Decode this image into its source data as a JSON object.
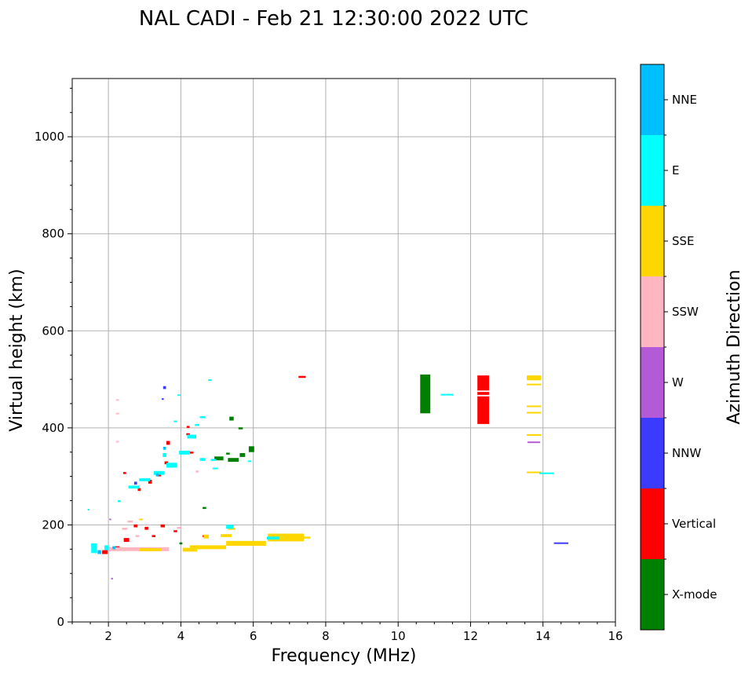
{
  "chart_data": {
    "type": "scatter",
    "title": "NAL CADI - Feb 21 12:30:00 2022 UTC",
    "xlabel": "Frequency (MHz)",
    "ylabel": "Virtual height (km)",
    "xlim": [
      1,
      16
    ],
    "ylim": [
      0,
      1120
    ],
    "xticks": [
      2,
      4,
      6,
      8,
      10,
      12,
      14,
      16
    ],
    "yticks": [
      0,
      200,
      400,
      600,
      800,
      1000
    ],
    "grid": true,
    "colorbar": {
      "label": "Azimuth Direction",
      "categories": [
        {
          "name": "X-mode",
          "color": "#008000"
        },
        {
          "name": "Vertical",
          "color": "#ff0000"
        },
        {
          "name": "NNW",
          "color": "#3b3bff"
        },
        {
          "name": "W",
          "color": "#b45ad6"
        },
        {
          "name": "SSW",
          "color": "#ffb6c1"
        },
        {
          "name": "SSE",
          "color": "#ffd700"
        },
        {
          "name": "E",
          "color": "#00ffff"
        },
        {
          "name": "NNE",
          "color": "#00bfff"
        }
      ]
    },
    "series": [
      {
        "name": "X-mode",
        "points": [
          [
            10.75,
            430,
            0.28,
            80
          ],
          [
            5.4,
            415,
            0.12,
            8
          ],
          [
            5.05,
            333,
            0.25,
            8
          ],
          [
            5.45,
            330,
            0.3,
            8
          ],
          [
            5.7,
            340,
            0.15,
            8
          ],
          [
            5.95,
            350,
            0.15,
            12
          ],
          [
            5.65,
            397,
            0.12,
            4
          ],
          [
            4.65,
            233,
            0.1,
            4
          ],
          [
            5.3,
            345,
            0.1,
            4
          ],
          [
            4.0,
            160,
            0.08,
            4
          ]
        ]
      },
      {
        "name": "Vertical",
        "points": [
          [
            12.35,
            408,
            0.32,
            100
          ],
          [
            7.35,
            503,
            0.2,
            4
          ],
          [
            2.5,
            165,
            0.15,
            8
          ],
          [
            2.75,
            195,
            0.1,
            6
          ],
          [
            3.05,
            190,
            0.1,
            6
          ],
          [
            3.15,
            285,
            0.1,
            8
          ],
          [
            3.4,
            300,
            0.1,
            6
          ],
          [
            3.6,
            325,
            0.1,
            6
          ],
          [
            3.65,
            365,
            0.1,
            8
          ],
          [
            4.2,
            385,
            0.1,
            4
          ],
          [
            4.2,
            400,
            0.08,
            4
          ],
          [
            2.45,
            305,
            0.08,
            4
          ],
          [
            1.9,
            140,
            0.15,
            8
          ],
          [
            3.5,
            195,
            0.12,
            6
          ],
          [
            4.3,
            347,
            0.1,
            4
          ],
          [
            2.25,
            150,
            0.12,
            6
          ],
          [
            3.25,
            175,
            0.1,
            4
          ],
          [
            3.85,
            185,
            0.1,
            4
          ],
          [
            4.65,
            175,
            0.1,
            4
          ],
          [
            2.85,
            270,
            0.08,
            6
          ]
        ]
      },
      {
        "name": "NNW",
        "points": [
          [
            14.5,
            162,
            0.4,
            2
          ],
          [
            3.55,
            480,
            0.08,
            6
          ],
          [
            3.5,
            458,
            0.06,
            3
          ],
          [
            2.75,
            283,
            0.08,
            6
          ]
        ]
      },
      {
        "name": "W",
        "points": [
          [
            13.75,
            369,
            0.35,
            3
          ],
          [
            2.1,
            88,
            0.05,
            3
          ],
          [
            2.05,
            210,
            0.05,
            3
          ]
        ]
      },
      {
        "name": "SSW",
        "points": [
          [
            2.6,
            146,
            1.25,
            8
          ],
          [
            3.25,
            146,
            0.85,
            8
          ],
          [
            2.45,
            190,
            0.15,
            4
          ],
          [
            2.8,
            175,
            0.1,
            4
          ],
          [
            2.25,
            456,
            0.08,
            3
          ],
          [
            2.25,
            428,
            0.08,
            3
          ],
          [
            2.25,
            370,
            0.08,
            3
          ],
          [
            3.95,
            192,
            0.12,
            4
          ],
          [
            4.45,
            308,
            0.08,
            4
          ],
          [
            2.6,
            205,
            0.15,
            4
          ]
        ]
      },
      {
        "name": "SSE",
        "points": [
          [
            4.75,
            150,
            1.0,
            8
          ],
          [
            5.8,
            157,
            1.1,
            10
          ],
          [
            6.9,
            166,
            1.0,
            16
          ],
          [
            13.75,
            498,
            0.4,
            10
          ],
          [
            13.75,
            488,
            0.4,
            3
          ],
          [
            13.75,
            443,
            0.4,
            3
          ],
          [
            13.75,
            430,
            0.4,
            3
          ],
          [
            13.75,
            384,
            0.4,
            3
          ],
          [
            13.75,
            308,
            0.4,
            2
          ],
          [
            4.4,
            150,
            0.2,
            8
          ],
          [
            5.25,
            175,
            0.3,
            6
          ],
          [
            3.15,
            146,
            0.6,
            6
          ],
          [
            4.25,
            145,
            0.4,
            8
          ],
          [
            4.7,
            172,
            0.15,
            8
          ],
          [
            2.9,
            210,
            0.1,
            3
          ],
          [
            5.4,
            190,
            0.2,
            4
          ],
          [
            7.45,
            172,
            0.25,
            4
          ]
        ]
      },
      {
        "name": "E",
        "points": [
          [
            11.35,
            467,
            0.35,
            3
          ],
          [
            14.1,
            305,
            0.4,
            3
          ],
          [
            2.7,
            275,
            0.3,
            6
          ],
          [
            3.0,
            290,
            0.3,
            6
          ],
          [
            3.4,
            303,
            0.3,
            8
          ],
          [
            3.75,
            318,
            0.3,
            10
          ],
          [
            4.1,
            345,
            0.3,
            8
          ],
          [
            4.3,
            378,
            0.25,
            8
          ],
          [
            4.6,
            332,
            0.15,
            6
          ],
          [
            4.9,
            332,
            0.15,
            4
          ],
          [
            5.35,
            192,
            0.2,
            8
          ],
          [
            6.55,
            170,
            0.35,
            6
          ],
          [
            1.6,
            142,
            0.15,
            20
          ],
          [
            1.95,
            148,
            0.12,
            10
          ],
          [
            2.3,
            247,
            0.08,
            4
          ],
          [
            4.6,
            420,
            0.15,
            4
          ],
          [
            4.8,
            497,
            0.1,
            3
          ],
          [
            3.85,
            412,
            0.1,
            3
          ],
          [
            3.95,
            466,
            0.08,
            3
          ],
          [
            4.45,
            404,
            0.12,
            4
          ],
          [
            4.95,
            315,
            0.15,
            3
          ],
          [
            5.9,
            330,
            0.1,
            3
          ],
          [
            1.45,
            230,
            0.05,
            3
          ],
          [
            3.55,
            340,
            0.1,
            8
          ]
        ]
      },
      {
        "name": "NNE",
        "points": [
          [
            1.75,
            140,
            0.1,
            8
          ],
          [
            2.15,
            150,
            0.08,
            6
          ],
          [
            3.35,
            300,
            0.08,
            6
          ],
          [
            3.55,
            355,
            0.08,
            6
          ]
        ]
      }
    ]
  }
}
